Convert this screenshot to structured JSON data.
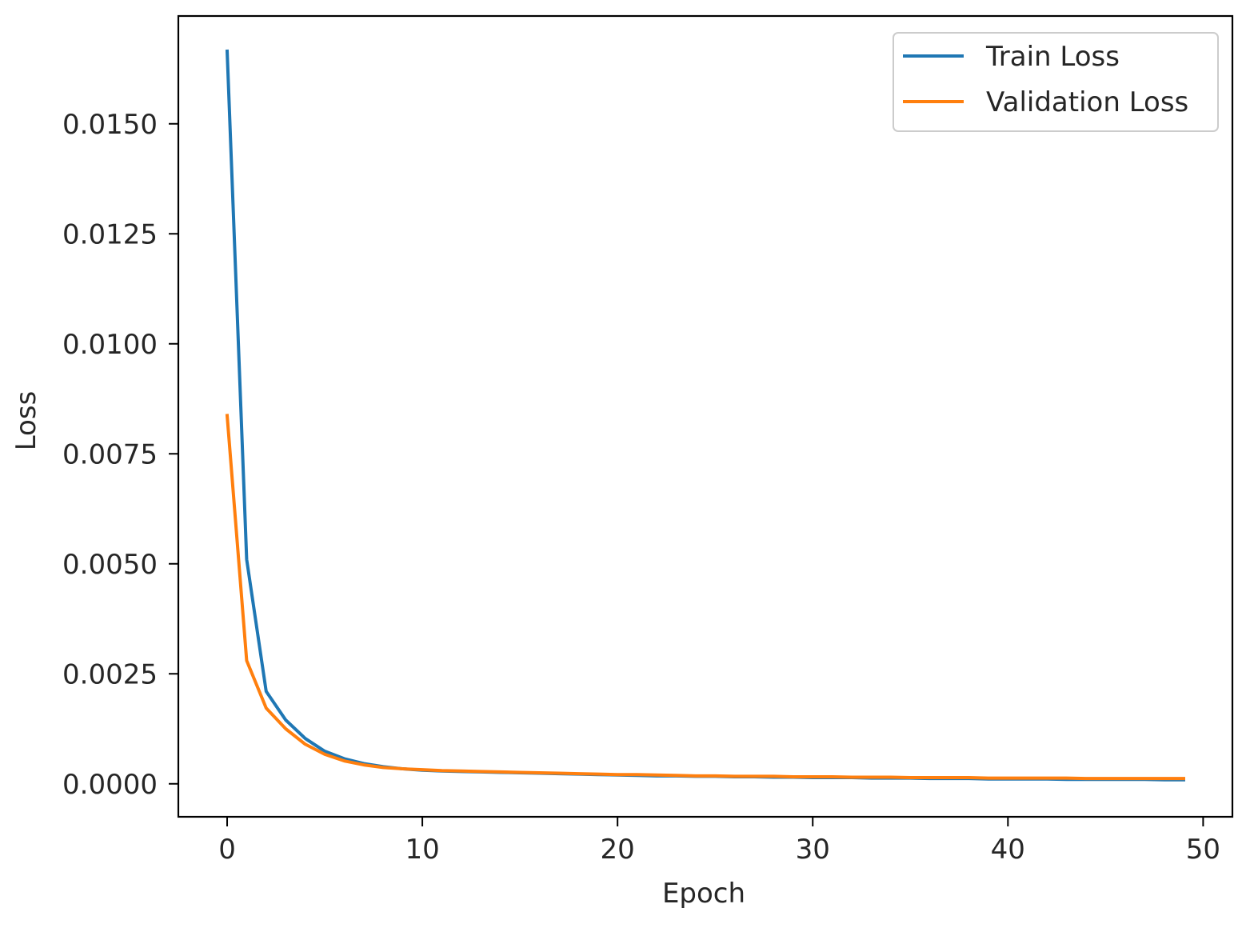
{
  "chart_data": {
    "type": "line",
    "title": "",
    "xlabel": "Epoch",
    "ylabel": "Loss",
    "xlim": [
      -2.5,
      51.5
    ],
    "ylim": [
      -0.00075,
      0.01745
    ],
    "xticks": [
      0,
      10,
      20,
      30,
      40,
      50
    ],
    "xtick_labels": [
      "0",
      "10",
      "20",
      "30",
      "40",
      "50"
    ],
    "yticks": [
      0,
      0.0025,
      0.005,
      0.0075,
      0.01,
      0.0125,
      0.015
    ],
    "ytick_labels": [
      "0.0000",
      "0.0025",
      "0.0050",
      "0.0075",
      "0.0100",
      "0.0125",
      "0.0150"
    ],
    "grid": false,
    "legend_position": "upper right",
    "x": [
      0,
      1,
      2,
      3,
      4,
      5,
      6,
      7,
      8,
      9,
      10,
      11,
      12,
      13,
      14,
      15,
      16,
      17,
      18,
      19,
      20,
      21,
      22,
      23,
      24,
      25,
      26,
      27,
      28,
      29,
      30,
      31,
      32,
      33,
      34,
      35,
      36,
      37,
      38,
      39,
      40,
      41,
      42,
      43,
      44,
      45,
      46,
      47,
      48,
      49
    ],
    "series": [
      {
        "name": "Train Loss",
        "color": "#1f77b4",
        "values": [
          0.01665,
          0.0051,
          0.0021,
          0.00145,
          0.00103,
          0.00074,
          0.00057,
          0.00046,
          0.00039,
          0.00034,
          0.00031,
          0.00029,
          0.00028,
          0.00027,
          0.00026,
          0.00025,
          0.00024,
          0.00023,
          0.00022,
          0.00021,
          0.0002,
          0.00019,
          0.00018,
          0.00018,
          0.00017,
          0.00017,
          0.00016,
          0.00016,
          0.00015,
          0.00015,
          0.00014,
          0.00014,
          0.00014,
          0.00013,
          0.00013,
          0.00013,
          0.00012,
          0.00012,
          0.00012,
          0.00011,
          0.00011,
          0.00011,
          0.00011,
          0.0001,
          0.0001,
          0.0001,
          0.0001,
          0.0001,
          9e-05,
          9e-05
        ]
      },
      {
        "name": "Validation Loss",
        "color": "#ff7f0e",
        "values": [
          0.00837,
          0.0028,
          0.00172,
          0.00125,
          0.0009,
          0.00067,
          0.00052,
          0.00043,
          0.00037,
          0.00034,
          0.00032,
          0.0003,
          0.00029,
          0.00028,
          0.00027,
          0.00026,
          0.00025,
          0.00024,
          0.00023,
          0.00022,
          0.00021,
          0.00021,
          0.0002,
          0.00019,
          0.00018,
          0.00018,
          0.00017,
          0.00017,
          0.00017,
          0.00016,
          0.00016,
          0.00016,
          0.00015,
          0.00015,
          0.00015,
          0.00014,
          0.00014,
          0.00014,
          0.00014,
          0.00013,
          0.00013,
          0.00013,
          0.00013,
          0.00013,
          0.00012,
          0.00012,
          0.00012,
          0.00012,
          0.00012,
          0.00012
        ]
      }
    ]
  }
}
